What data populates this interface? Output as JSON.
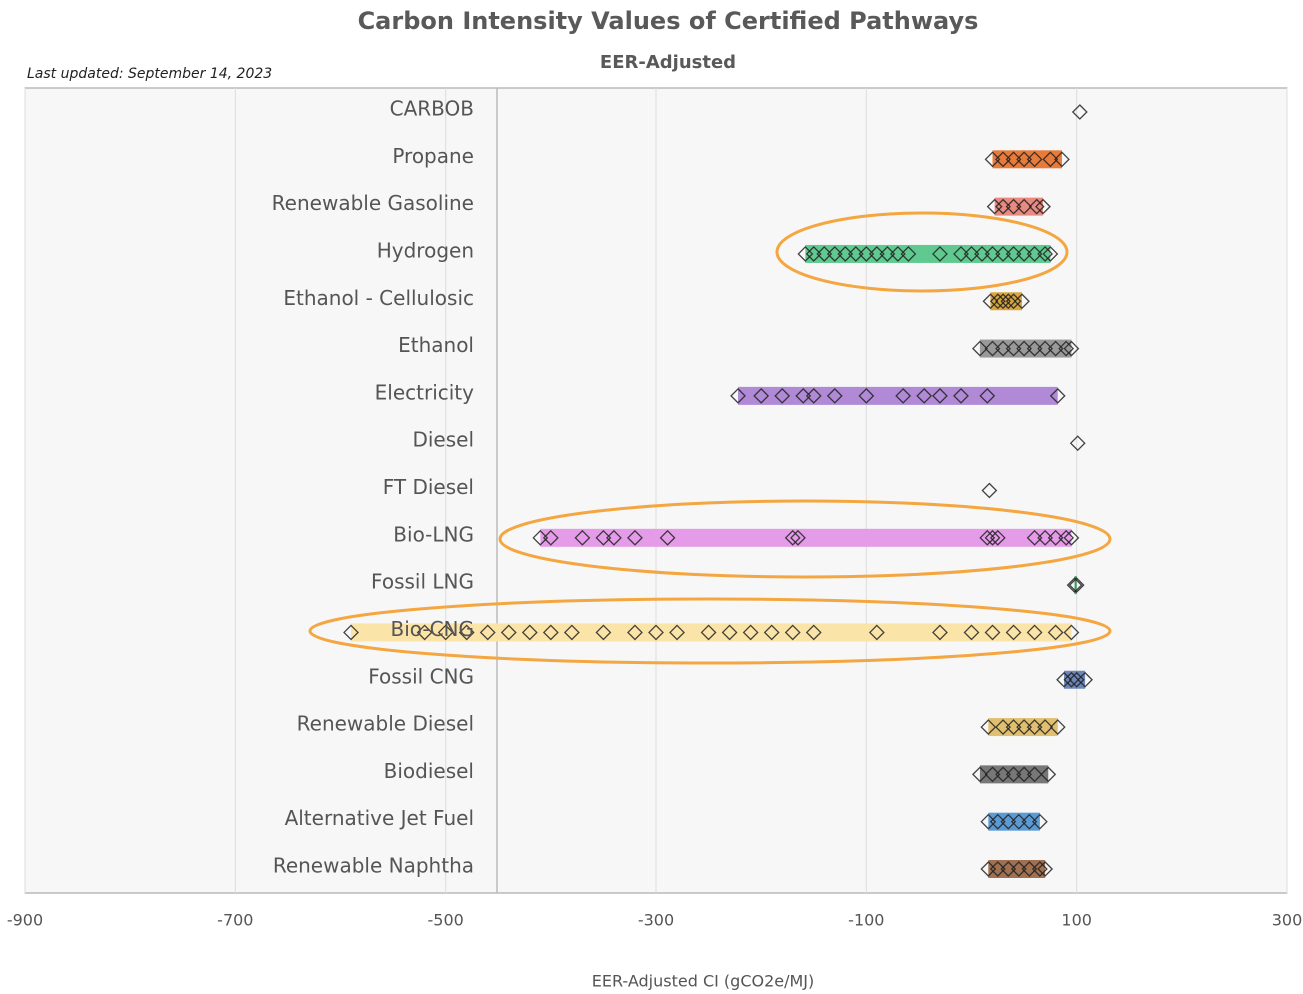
{
  "chart_data": {
    "type": "strip",
    "title": "Carbon Intensity Values of Certified Pathways",
    "subtitle": "EER-Adjusted",
    "note": "Last updated: September 14, 2023",
    "x_label": "EER-Adjusted CI (gCO2e/MJ)",
    "xlim": [
      -900,
      300
    ],
    "xticks": [
      -900,
      -700,
      -500,
      -300,
      -100,
      100,
      300
    ],
    "grid": true,
    "categories": [
      "CARBOB",
      "Propane",
      "Renewable Gasoline",
      "Hydrogen",
      "Ethanol - Cellulosic",
      "Ethanol",
      "Electricity",
      "Diesel",
      "FT Diesel",
      "Bio-LNG",
      "Fossil LNG",
      "Bio-CNG",
      "Fossil CNG",
      "Renewable Diesel",
      "Biodiesel",
      "Alternative Jet Fuel",
      "Renewable Naphtha"
    ],
    "colors": [
      "#ffffff",
      "#e87b3a",
      "#e88a80",
      "#5fc98f",
      "#d9a640",
      "#999999",
      "#b08ad6",
      "#ffffff",
      "#ffffff",
      "#e49be8",
      "#2e9e5e",
      "#fbe4a8",
      "#6c86b8",
      "#e0c070",
      "#777777",
      "#5b9bd5",
      "#a07050"
    ],
    "values": [
      [
        103
      ],
      [
        20,
        30,
        40,
        50,
        60,
        75,
        86
      ],
      [
        22,
        30,
        40,
        50,
        62,
        68
      ],
      [
        -158,
        -150,
        -140,
        -130,
        -120,
        -110,
        -100,
        -90,
        -80,
        -70,
        -60,
        -30,
        -10,
        0,
        10,
        20,
        30,
        40,
        50,
        60,
        70,
        75
      ],
      [
        18,
        25,
        30,
        35,
        40,
        48
      ],
      [
        8,
        20,
        30,
        40,
        50,
        60,
        70,
        80,
        90,
        95
      ],
      [
        -222,
        -200,
        -180,
        -160,
        -150,
        -130,
        -100,
        -65,
        -45,
        -30,
        -10,
        15,
        82
      ],
      [
        101
      ],
      [
        17
      ],
      [
        -410,
        -400,
        -370,
        -350,
        -340,
        -320,
        -289,
        -170,
        -165,
        15,
        20,
        25,
        60,
        70,
        80,
        90,
        95
      ],
      [
        98,
        100
      ],
      [
        -590,
        -520,
        -500,
        -480,
        -460,
        -440,
        -420,
        -400,
        -380,
        -350,
        -320,
        -300,
        -280,
        -250,
        -230,
        -210,
        -190,
        -170,
        -150,
        -90,
        -30,
        0,
        20,
        40,
        60,
        80,
        95
      ],
      [
        88,
        95,
        100,
        108
      ],
      [
        16,
        30,
        40,
        50,
        60,
        70,
        82
      ],
      [
        8,
        20,
        30,
        40,
        50,
        60,
        73
      ],
      [
        16,
        25,
        35,
        45,
        55,
        65
      ],
      [
        16,
        25,
        35,
        45,
        55,
        65,
        70
      ]
    ]
  }
}
